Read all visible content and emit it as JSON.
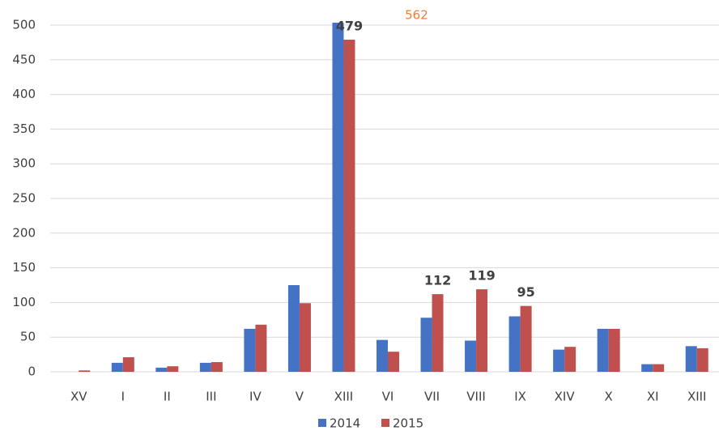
{
  "chart_data": {
    "type": "bar",
    "categories": [
      "XV",
      "I",
      "II",
      "III",
      "IV",
      "V",
      "XIII",
      "VI",
      "VII",
      "VIII",
      "IX",
      "XIV",
      "X",
      "XI",
      "XIII"
    ],
    "series": [
      {
        "name": "2014",
        "color": "#4472c4",
        "values": [
          0,
          13,
          6,
          13,
          62,
          125,
          562,
          46,
          78,
          45,
          80,
          32,
          62,
          11,
          37
        ],
        "value_labels": [
          null,
          null,
          null,
          null,
          null,
          null,
          "562",
          null,
          null,
          null,
          null,
          null,
          null,
          null,
          null
        ]
      },
      {
        "name": "2015",
        "color": "#c0504d",
        "values": [
          2,
          21,
          8,
          14,
          68,
          99,
          479,
          29,
          112,
          119,
          95,
          36,
          62,
          11,
          34
        ],
        "value_labels": [
          null,
          null,
          null,
          null,
          null,
          null,
          "479",
          null,
          "112",
          "119",
          "95",
          null,
          null,
          null,
          null
        ]
      }
    ],
    "ylim": [
      0,
      500
    ],
    "yticks": [
      0,
      50,
      100,
      150,
      200,
      250,
      300,
      350,
      400,
      450,
      500
    ],
    "grid": true,
    "legend": "bottom"
  }
}
